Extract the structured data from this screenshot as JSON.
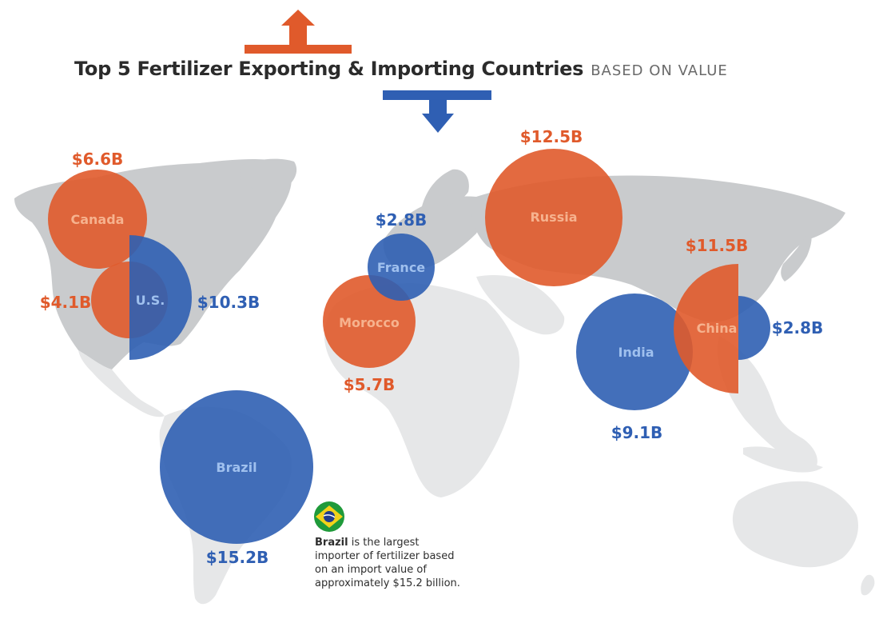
{
  "title": "Top 5 Fertilizer Exporting & Importing Countries",
  "subtitle": "BASED ON VALUE",
  "colors": {
    "export": "#e05a2b",
    "import": "#2f5fb3",
    "land": "#c9cbcd",
    "land_light": "#e6e7e8"
  },
  "legend": {
    "export_arrow": "arrow-up-icon",
    "import_arrow": "arrow-down-icon"
  },
  "countries": {
    "canada": {
      "name": "Canada",
      "export_value": "$6.6B"
    },
    "us": {
      "name": "U.S.",
      "export_value": "$4.1B",
      "import_value": "$10.3B"
    },
    "france": {
      "name": "France",
      "import_value": "$2.8B"
    },
    "morocco": {
      "name": "Morocco",
      "export_value": "$5.7B"
    },
    "russia": {
      "name": "Russia",
      "export_value": "$12.5B"
    },
    "china": {
      "name": "China",
      "export_value": "$11.5B",
      "import_value": "$2.8B"
    },
    "india": {
      "name": "India",
      "import_value": "$9.1B"
    },
    "brazil": {
      "name": "Brazil",
      "import_value": "$15.2B"
    }
  },
  "note": {
    "bold": "Brazil",
    "text": " is the largest importer of fertilizer based on an import value of approximately $15.2 billion.",
    "flag_icon": "brazil-flag-icon"
  }
}
